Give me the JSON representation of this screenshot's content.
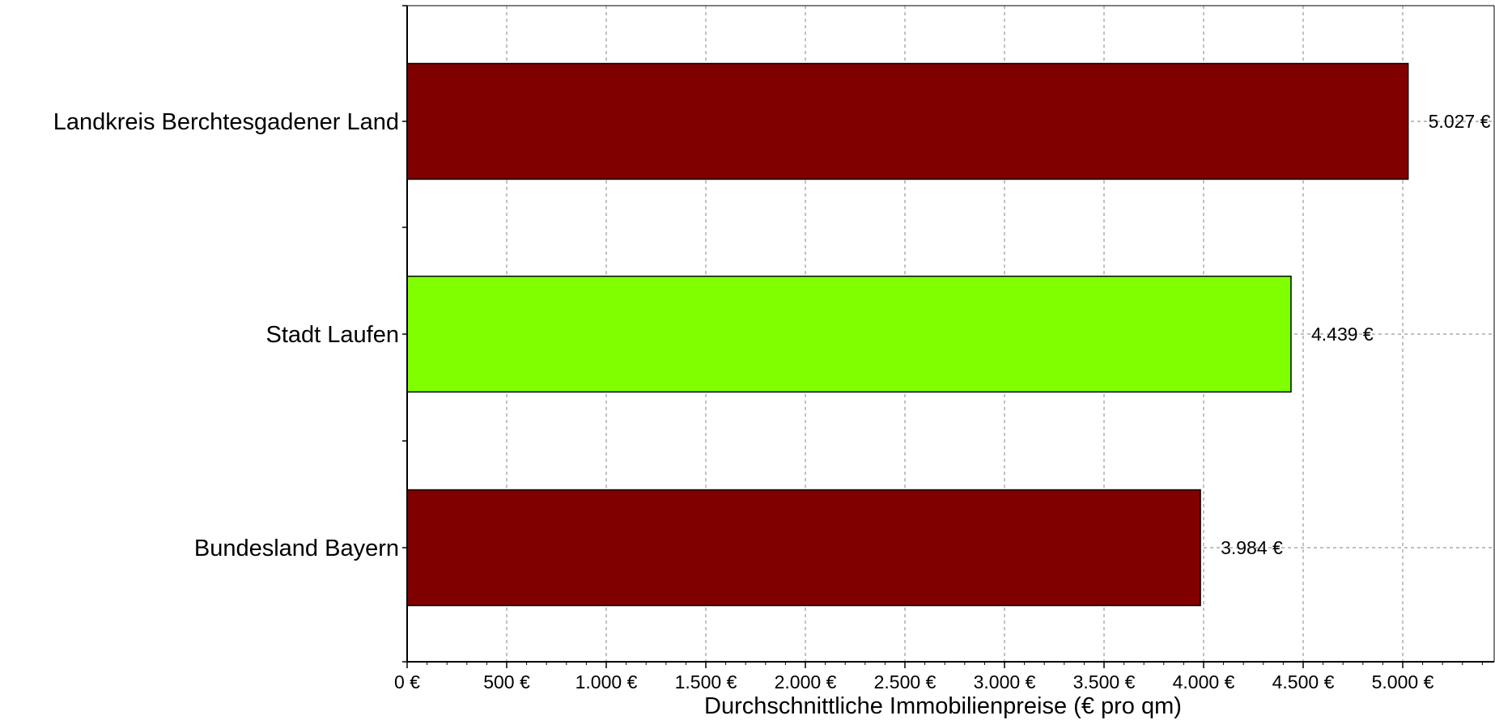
{
  "chart_data": {
    "type": "bar",
    "orientation": "horizontal",
    "title": "",
    "xlabel": "Durchschnittliche Immobilienpreise (€ pro qm)",
    "ylabel": "",
    "xlim": [
      0,
      5450
    ],
    "grid": true,
    "categories": [
      "Landkreis Berchtesgadener Land",
      "Stadt Laufen",
      "Bundesland Bayern"
    ],
    "values": [
      5027,
      4439,
      3984
    ],
    "value_labels": [
      "5.027 €",
      "4.439 €",
      "3.984 €"
    ],
    "bar_colors": [
      "#800000",
      "#80ff00",
      "#800000"
    ],
    "x_ticks": [
      0,
      500,
      1000,
      1500,
      2000,
      2500,
      3000,
      3500,
      4000,
      4500,
      5000
    ],
    "x_tick_labels": [
      "0 €",
      "500 €",
      "1.000 €",
      "1.500 €",
      "2.000 €",
      "2.500 €",
      "3.000 €",
      "3.500 €",
      "4.000 €",
      "4.500 €",
      "5.000 €"
    ]
  }
}
